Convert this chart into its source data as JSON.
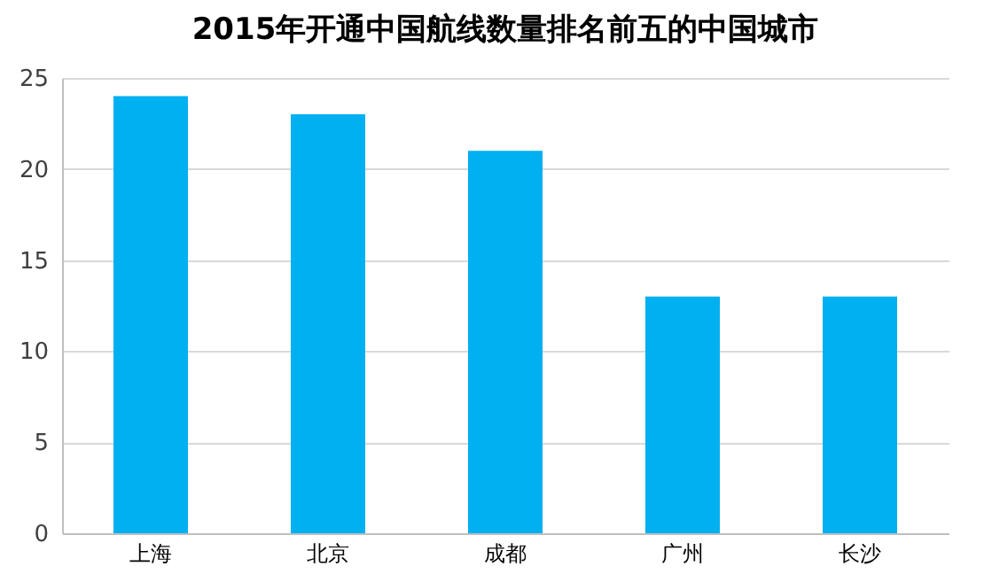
{
  "chart_data": {
    "type": "bar",
    "title": "2015年开通中国航线数量排名前五的中国城市",
    "categories": [
      "上海",
      "北京",
      "成都",
      "广州",
      "长沙"
    ],
    "values": [
      24,
      23,
      21,
      13,
      13
    ],
    "color": "#00b0f0",
    "ylim": [
      0,
      25
    ],
    "yticks": [
      0,
      5,
      10,
      15,
      20,
      25
    ],
    "grid": "y"
  }
}
